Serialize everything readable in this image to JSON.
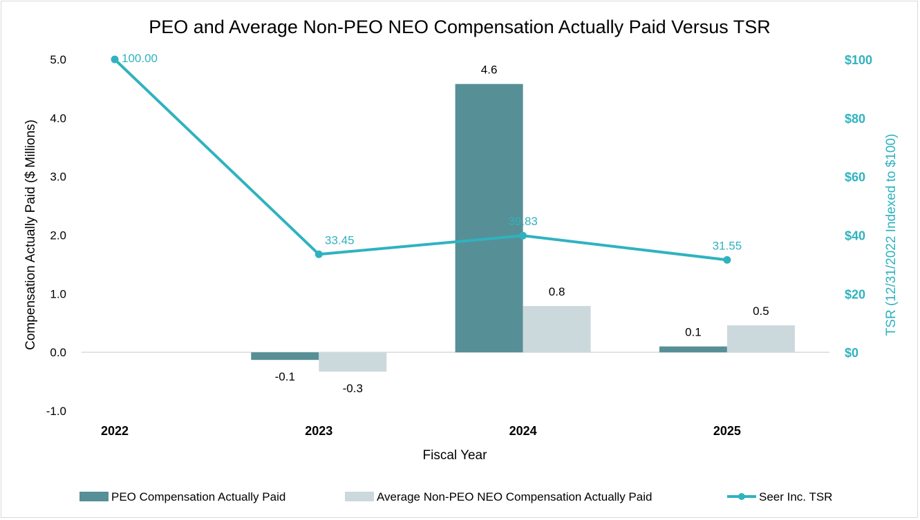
{
  "chart_data": {
    "type": "bar",
    "title": "PEO and Average Non-PEO NEO Compensation Actually Paid Versus TSR",
    "xlabel": "Fiscal Year",
    "ylabel": "Compensation Actually Paid ($ Millions)",
    "y2label": "TSR (12/31/2022 Indexed to $100)",
    "categories": [
      "2022",
      "2023",
      "2024",
      "2025"
    ],
    "ylim": [
      -1.0,
      5.0
    ],
    "yticks": [
      "-1.0",
      "0.0",
      "1.0",
      "2.0",
      "3.0",
      "4.0",
      "5.0"
    ],
    "y2lim": [
      0,
      100
    ],
    "y2ticks": [
      "$0",
      "$20",
      "$40",
      "$60",
      "$80",
      "$100"
    ],
    "series": [
      {
        "name": "PEO Compensation Actually Paid",
        "kind": "bar",
        "axis": "left",
        "color": "#578f96",
        "values": [
          null,
          -0.13,
          4.58,
          0.1
        ],
        "labels": [
          "",
          "-0.1",
          "4.6",
          "0.1"
        ]
      },
      {
        "name": "Average Non-PEO NEO Compensation Actually Paid",
        "kind": "bar",
        "axis": "left",
        "color": "#ccd9dc",
        "values": [
          null,
          -0.33,
          0.79,
          0.46
        ],
        "labels": [
          "",
          "-0.3",
          "0.8",
          "0.5"
        ]
      },
      {
        "name": "Seer Inc.  TSR",
        "kind": "line",
        "axis": "right",
        "color": "#2fb2c0",
        "values": [
          100.0,
          33.45,
          39.83,
          31.55
        ],
        "labels": [
          "100.00",
          "33.45",
          "39.83",
          "31.55"
        ]
      }
    ],
    "grid": false,
    "legend_position": "bottom"
  }
}
